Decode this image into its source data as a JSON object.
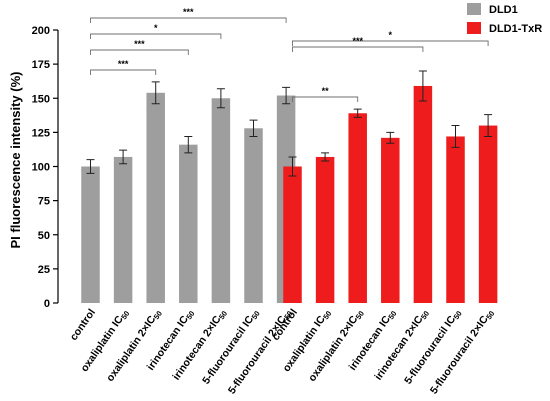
{
  "chart_data": {
    "type": "bar",
    "ylabel": "PI fluorescence intensity (%)",
    "ylim": [
      0,
      200
    ],
    "yticks": [
      "0",
      "25",
      "50",
      "75",
      "100",
      "125",
      "150",
      "175",
      "200"
    ],
    "categories": [
      "control",
      "oxaliplatin IC50",
      "oxaliplatin 2×IC50",
      "irinotecan IC50",
      "irinotecan 2×IC50",
      "5-fluorouracil IC50",
      "5-fluorouracil 2×IC50"
    ],
    "category_labels": [
      {
        "name": "control"
      },
      {
        "name": "oxaliplatin IC",
        "sub": "50"
      },
      {
        "name": "oxaliplatin 2×IC",
        "sub": "50"
      },
      {
        "name": "irinotecan IC",
        "sub": "50"
      },
      {
        "name": "irinotecan 2×IC",
        "sub": "50"
      },
      {
        "name": "5-fluorouracil IC",
        "sub": "50"
      },
      {
        "name": "5-fluorouracil 2×IC",
        "sub": "50"
      }
    ],
    "series": [
      {
        "name": "DLD1",
        "color": "#9e9e9e",
        "values": [
          100,
          107,
          154,
          116,
          150,
          128,
          152
        ],
        "errors": [
          5,
          5,
          8,
          6,
          7,
          6,
          6
        ]
      },
      {
        "name": "DLD1-TxR",
        "color": "#ee1c1c",
        "values": [
          100,
          107,
          139,
          121,
          159,
          122,
          130
        ],
        "errors": [
          7,
          3,
          3,
          4,
          11,
          8,
          8
        ]
      }
    ],
    "significance": [
      {
        "series": 0,
        "from": 0,
        "to": 6,
        "label": "***"
      },
      {
        "series": 0,
        "from": 0,
        "to": 4,
        "label": "*"
      },
      {
        "series": 0,
        "from": 0,
        "to": 3,
        "label": "***"
      },
      {
        "series": 0,
        "from": 0,
        "to": 2,
        "label": "***"
      },
      {
        "series": 1,
        "from": 0,
        "to": 6,
        "label": "*"
      },
      {
        "series": 1,
        "from": 0,
        "to": 4,
        "label": "***"
      },
      {
        "series": 1,
        "from": 0,
        "to": 2,
        "label": "**"
      }
    ],
    "legend_position": "top-right",
    "grid": false
  }
}
